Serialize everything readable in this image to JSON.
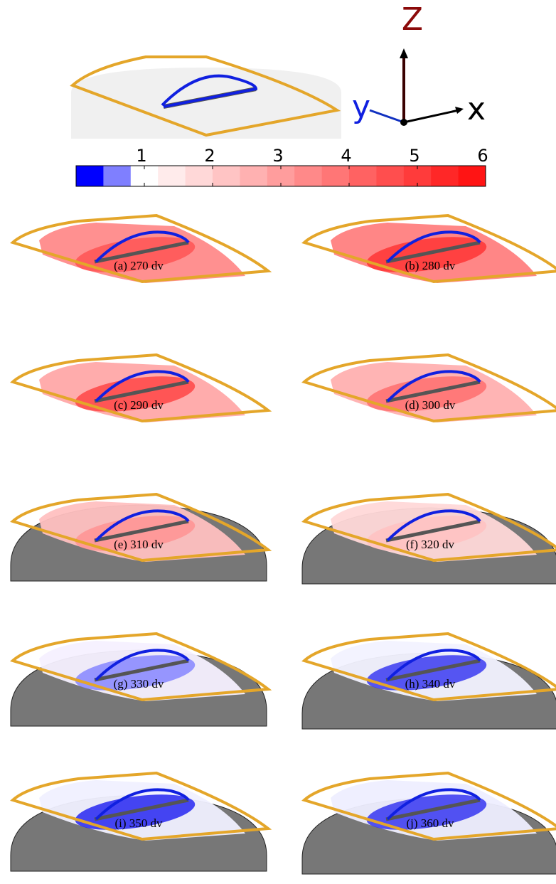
{
  "axes_labels": {
    "z": "Z",
    "y": "y",
    "x": "x"
  },
  "colorbar": {
    "lim": [
      0,
      6
    ],
    "ticks": [
      1,
      2,
      3,
      4,
      5,
      6
    ],
    "colors": [
      "#0000ff",
      "#7f7fff",
      "#ffffff",
      "#ffebeb",
      "#ffd8d8",
      "#ffc4c4",
      "#ffb1b1",
      "#ff9d9d",
      "#ff8989",
      "#ff7676",
      "#ff6262",
      "#ff4e4e",
      "#ff3b3b",
      "#ff2727",
      "#ff1414"
    ]
  },
  "panels": [
    {
      "caption": "(a) 270 dv"
    },
    {
      "caption": "(b) 280 dv"
    },
    {
      "caption": "(c) 290 dv"
    },
    {
      "caption": "(d) 300 dv"
    },
    {
      "caption": "(e) 310 dv"
    },
    {
      "caption": "(f) 320 dv"
    },
    {
      "caption": "(g) 330 dv"
    },
    {
      "caption": "(h) 340 dv"
    },
    {
      "caption": "(i) 350 dv"
    },
    {
      "caption": "(j) 360 dv"
    }
  ]
}
